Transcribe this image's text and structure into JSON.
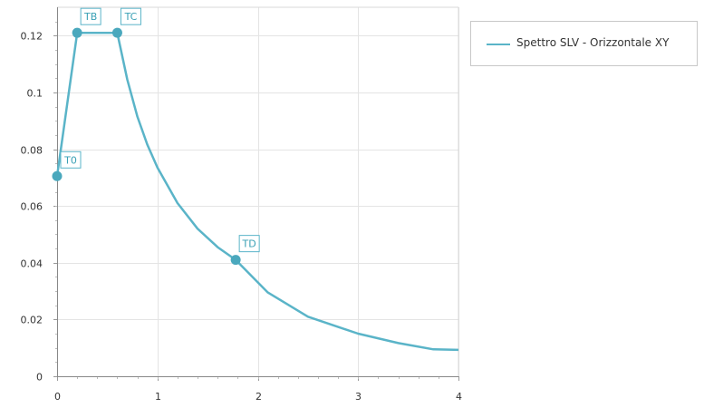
{
  "chart_data": {
    "type": "line",
    "title": "",
    "xlabel": "",
    "ylabel": "",
    "xlim": [
      0,
      4
    ],
    "ylim": [
      0,
      0.13
    ],
    "x_ticks": [
      0,
      1,
      2,
      3,
      4
    ],
    "y_ticks": [
      0,
      0.02,
      0.04,
      0.06,
      0.08,
      0.1,
      0.12
    ],
    "x_tick_labels": [
      "0",
      "1",
      "2",
      "3",
      "4"
    ],
    "y_tick_labels": [
      "0",
      "0.02",
      "0.04",
      "0.06",
      "0.08",
      "0.1",
      "0.12"
    ],
    "grid": true,
    "legend_position": "top-right-outside",
    "series": [
      {
        "name": "Spettro SLV - Orizzontale XY",
        "color": "#5ab4c8",
        "x": [
          0,
          0.2,
          0.6,
          0.7,
          0.8,
          0.9,
          1.0,
          1.2,
          1.4,
          1.6,
          1.78,
          2.1,
          2.5,
          3.0,
          3.4,
          3.75,
          4.0
        ],
        "y": [
          0.0705,
          0.121,
          0.121,
          0.1045,
          0.0915,
          0.0815,
          0.0735,
          0.061,
          0.052,
          0.0455,
          0.041,
          0.0295,
          0.021,
          0.015,
          0.0117,
          0.0095,
          0.0093
        ]
      }
    ],
    "points": [
      {
        "label": "T0",
        "x": 0,
        "y": 0.0705
      },
      {
        "label": "TB",
        "x": 0.2,
        "y": 0.121
      },
      {
        "label": "TC",
        "x": 0.6,
        "y": 0.121
      },
      {
        "label": "TD",
        "x": 1.78,
        "y": 0.041
      }
    ]
  }
}
